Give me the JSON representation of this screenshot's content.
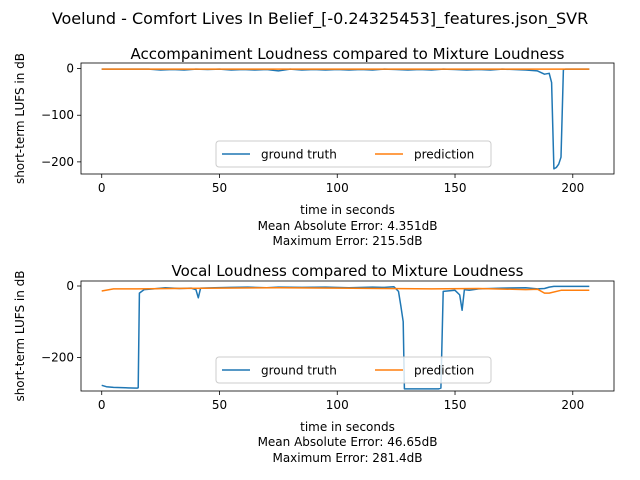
{
  "figure": {
    "suptitle": "Voelund - Comfort Lives In Belief_[-0.24325453]_features.json_SVR",
    "colors": {
      "ground_truth": "#1f77b4",
      "prediction": "#ff7f0e"
    }
  },
  "chart_data": [
    {
      "type": "line",
      "title": "Accompaniment Loudness compared to Mixture Loudness",
      "xlabel": "time in seconds",
      "ylabel": "short-term LUFS in dB",
      "xlim": [
        -8.8,
        217.5
      ],
      "ylim": [
        -226,
        12
      ],
      "xticks": [
        0,
        50,
        100,
        150,
        200
      ],
      "yticks": [
        0,
        -100,
        -200
      ],
      "grid": false,
      "legend": {
        "placement": "lower center",
        "entries": [
          "ground truth",
          "prediction"
        ]
      },
      "notes": [
        "Mean Absolute Error: 4.351dB",
        "Maximum Error: 215.5dB"
      ],
      "series": [
        {
          "name": "ground truth",
          "x": [
            0,
            10,
            20,
            25,
            30,
            35,
            40,
            45,
            50,
            55,
            60,
            65,
            70,
            75,
            80,
            85,
            90,
            95,
            100,
            105,
            110,
            115,
            120,
            125,
            130,
            135,
            140,
            145,
            150,
            155,
            160,
            165,
            170,
            175,
            180,
            185,
            188,
            190,
            191,
            192,
            193,
            194,
            195,
            196,
            197,
            198,
            200,
            207
          ],
          "y": [
            -1,
            -1,
            -1,
            -3,
            -2,
            -3,
            -1,
            -2,
            -1,
            -3,
            -2,
            -3,
            -2,
            -5,
            -1,
            -3,
            -2,
            -3,
            -2,
            -3,
            -2,
            -3,
            -1,
            -2,
            -3,
            -2,
            -3,
            -1,
            -2,
            -3,
            -2,
            -3,
            -1,
            -2,
            -3,
            -5,
            -12,
            -10,
            -30,
            -215,
            -212,
            -205,
            -190,
            -2,
            -1,
            -1,
            -1,
            -1
          ]
        },
        {
          "name": "prediction",
          "x": [
            0,
            20,
            40,
            60,
            80,
            100,
            120,
            140,
            160,
            180,
            190,
            195,
            200,
            207
          ],
          "y": [
            -1,
            -1,
            -1,
            -1,
            -1,
            -1,
            -1,
            -1,
            -1,
            -1,
            -1,
            -1,
            -1,
            -1
          ]
        }
      ]
    },
    {
      "type": "line",
      "title": "Vocal Loudness compared to Mixture Loudness",
      "xlabel": "time in seconds",
      "ylabel": "short-term LUFS in dB",
      "xlim": [
        -8.8,
        217.5
      ],
      "ylim": [
        -294,
        14
      ],
      "xticks": [
        0,
        50,
        100,
        150,
        200
      ],
      "yticks": [
        0,
        -200
      ],
      "grid": false,
      "legend": {
        "placement": "lower center",
        "entries": [
          "ground truth",
          "prediction"
        ]
      },
      "notes": [
        "Mean Absolute Error: 46.65dB",
        "Maximum Error: 281.4dB"
      ],
      "series": [
        {
          "name": "ground truth",
          "x": [
            0,
            2,
            5,
            10,
            15,
            15.5,
            16,
            18,
            22,
            27,
            33,
            38,
            40,
            41,
            42,
            48,
            55,
            62,
            70,
            75,
            85,
            95,
            105,
            115,
            120,
            124,
            126,
            127,
            128,
            128.5,
            130,
            140,
            143,
            144,
            145,
            150,
            152,
            153,
            154,
            156,
            160,
            170,
            180,
            185,
            188,
            190,
            192,
            200,
            207
          ],
          "y": [
            -278,
            -282,
            -284,
            -285,
            -286,
            -285,
            -20,
            -10,
            -8,
            -5,
            -7,
            -6,
            -10,
            -33,
            -6,
            -5,
            -4,
            -3,
            -5,
            -3,
            -4,
            -3,
            -5,
            -3,
            -4,
            -2,
            -15,
            -55,
            -100,
            -288,
            -288,
            -288,
            -288,
            -286,
            -15,
            -12,
            -25,
            -68,
            -10,
            -12,
            -8,
            -6,
            -5,
            -8,
            -7,
            -3,
            -1,
            -1,
            -1
          ]
        },
        {
          "name": "prediction",
          "x": [
            0,
            5,
            15,
            30,
            50,
            75,
            100,
            120,
            140,
            160,
            180,
            185,
            188,
            190,
            195,
            207
          ],
          "y": [
            -14,
            -8,
            -8,
            -7,
            -6,
            -5,
            -6,
            -7,
            -8,
            -7,
            -10,
            -9,
            -20,
            -20,
            -12,
            -12
          ]
        }
      ]
    }
  ]
}
